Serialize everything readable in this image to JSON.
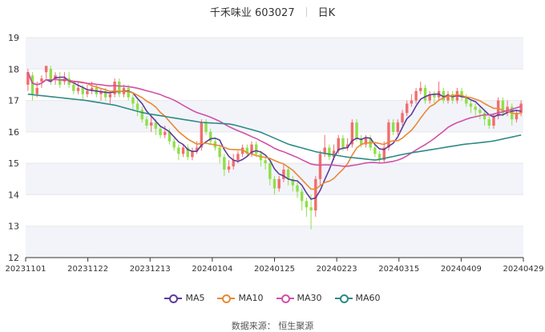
{
  "header": {
    "stock_name": "千禾味业 603027",
    "period": "日K"
  },
  "source": "数据来源： 恒生聚源",
  "colors": {
    "up": "#f26d6d",
    "down": "#8fe04a",
    "ma5": "#5d3b9b",
    "ma10": "#e88a34",
    "ma30": "#d150a8",
    "ma60": "#2d8a86",
    "grid": "#e8e8e8",
    "band": "#f2f4fa"
  },
  "chart_data": {
    "type": "candlestick",
    "x_tick_labels": [
      "20231101",
      "20231122",
      "20231213",
      "20240104",
      "20240125",
      "20240223",
      "20240315",
      "20240409",
      "20240429"
    ],
    "y_tick_labels": [
      "12",
      "13",
      "14",
      "15",
      "16",
      "17",
      "18",
      "19"
    ],
    "ylim": [
      12,
      19
    ],
    "legend": [
      "MA5",
      "MA10",
      "MA30",
      "MA60"
    ],
    "legend_position": "bottom",
    "candles": [
      {
        "o": 17.5,
        "c": 17.9,
        "h": 18.0,
        "l": 17.3
      },
      {
        "o": 17.8,
        "c": 17.2,
        "h": 17.9,
        "l": 17.0
      },
      {
        "o": 17.2,
        "c": 17.4,
        "h": 17.6,
        "l": 17.1
      },
      {
        "o": 17.6,
        "c": 17.7,
        "h": 17.8,
        "l": 17.4
      },
      {
        "o": 17.9,
        "c": 18.1,
        "h": 18.1,
        "l": 17.7
      },
      {
        "o": 18.0,
        "c": 17.6,
        "h": 18.1,
        "l": 17.5
      },
      {
        "o": 17.7,
        "c": 17.8,
        "h": 17.9,
        "l": 17.5
      },
      {
        "o": 17.7,
        "c": 17.5,
        "h": 17.9,
        "l": 17.4
      },
      {
        "o": 17.6,
        "c": 17.7,
        "h": 17.9,
        "l": 17.5
      },
      {
        "o": 17.7,
        "c": 17.5,
        "h": 17.9,
        "l": 17.4
      },
      {
        "o": 17.5,
        "c": 17.3,
        "h": 17.6,
        "l": 17.2
      },
      {
        "o": 17.3,
        "c": 17.4,
        "h": 17.6,
        "l": 17.2
      },
      {
        "o": 17.4,
        "c": 17.2,
        "h": 17.5,
        "l": 17.0
      },
      {
        "o": 17.2,
        "c": 17.3,
        "h": 17.5,
        "l": 17.1
      },
      {
        "o": 17.3,
        "c": 17.4,
        "h": 17.6,
        "l": 17.2
      },
      {
        "o": 17.4,
        "c": 17.2,
        "h": 17.5,
        "l": 17.1
      },
      {
        "o": 17.2,
        "c": 17.3,
        "h": 17.4,
        "l": 17.0
      },
      {
        "o": 17.3,
        "c": 17.1,
        "h": 17.4,
        "l": 17.0
      },
      {
        "o": 17.1,
        "c": 17.2,
        "h": 17.3,
        "l": 16.9
      },
      {
        "o": 17.2,
        "c": 17.6,
        "h": 17.7,
        "l": 17.1
      },
      {
        "o": 17.6,
        "c": 17.2,
        "h": 17.7,
        "l": 17.1
      },
      {
        "o": 17.2,
        "c": 17.4,
        "h": 17.5,
        "l": 17.1
      },
      {
        "o": 17.4,
        "c": 17.1,
        "h": 17.5,
        "l": 17.0
      },
      {
        "o": 17.1,
        "c": 16.9,
        "h": 17.2,
        "l": 16.7
      },
      {
        "o": 16.9,
        "c": 16.7,
        "h": 17.0,
        "l": 16.5
      },
      {
        "o": 16.7,
        "c": 16.4,
        "h": 16.8,
        "l": 16.3
      },
      {
        "o": 16.4,
        "c": 16.2,
        "h": 16.5,
        "l": 16.1
      },
      {
        "o": 16.2,
        "c": 16.3,
        "h": 16.5,
        "l": 16.0
      },
      {
        "o": 16.3,
        "c": 16.1,
        "h": 16.4,
        "l": 15.9
      },
      {
        "o": 16.1,
        "c": 15.9,
        "h": 16.2,
        "l": 15.8
      },
      {
        "o": 15.9,
        "c": 16.0,
        "h": 16.2,
        "l": 15.8
      },
      {
        "o": 16.0,
        "c": 15.7,
        "h": 16.1,
        "l": 15.6
      },
      {
        "o": 15.7,
        "c": 15.5,
        "h": 15.8,
        "l": 15.4
      },
      {
        "o": 15.5,
        "c": 15.3,
        "h": 15.6,
        "l": 15.1
      },
      {
        "o": 15.3,
        "c": 15.5,
        "h": 15.6,
        "l": 15.2
      },
      {
        "o": 15.5,
        "c": 15.2,
        "h": 15.6,
        "l": 15.1
      },
      {
        "o": 15.2,
        "c": 15.4,
        "h": 15.5,
        "l": 15.1
      },
      {
        "o": 15.4,
        "c": 15.5,
        "h": 15.7,
        "l": 15.3
      },
      {
        "o": 15.5,
        "c": 16.3,
        "h": 16.4,
        "l": 15.4
      },
      {
        "o": 16.3,
        "c": 16.0,
        "h": 16.4,
        "l": 15.9
      },
      {
        "o": 16.0,
        "c": 15.7,
        "h": 16.1,
        "l": 15.6
      },
      {
        "o": 15.7,
        "c": 15.5,
        "h": 15.8,
        "l": 15.4
      },
      {
        "o": 15.5,
        "c": 15.2,
        "h": 15.6,
        "l": 15.0
      },
      {
        "o": 15.2,
        "c": 14.8,
        "h": 15.3,
        "l": 14.6
      },
      {
        "o": 14.8,
        "c": 14.9,
        "h": 15.1,
        "l": 14.7
      },
      {
        "o": 14.9,
        "c": 15.1,
        "h": 15.3,
        "l": 14.8
      },
      {
        "o": 15.1,
        "c": 15.3,
        "h": 15.4,
        "l": 15.0
      },
      {
        "o": 15.3,
        "c": 15.5,
        "h": 15.6,
        "l": 15.2
      },
      {
        "o": 15.5,
        "c": 15.3,
        "h": 15.6,
        "l": 15.2
      },
      {
        "o": 15.3,
        "c": 15.6,
        "h": 15.7,
        "l": 15.2
      },
      {
        "o": 15.6,
        "c": 15.3,
        "h": 15.7,
        "l": 15.2
      },
      {
        "o": 15.3,
        "c": 15.1,
        "h": 15.4,
        "l": 14.9
      },
      {
        "o": 15.1,
        "c": 15.0,
        "h": 15.2,
        "l": 14.8
      },
      {
        "o": 15.0,
        "c": 14.5,
        "h": 15.1,
        "l": 14.3
      },
      {
        "o": 14.5,
        "c": 14.2,
        "h": 14.6,
        "l": 14.0
      },
      {
        "o": 14.2,
        "c": 14.5,
        "h": 14.6,
        "l": 14.1
      },
      {
        "o": 14.5,
        "c": 14.8,
        "h": 15.0,
        "l": 14.4
      },
      {
        "o": 14.8,
        "c": 14.5,
        "h": 14.9,
        "l": 14.3
      },
      {
        "o": 14.5,
        "c": 14.3,
        "h": 14.6,
        "l": 14.1
      },
      {
        "o": 14.3,
        "c": 14.1,
        "h": 14.4,
        "l": 13.9
      },
      {
        "o": 14.1,
        "c": 13.8,
        "h": 14.2,
        "l": 13.5
      },
      {
        "o": 13.8,
        "c": 13.6,
        "h": 13.9,
        "l": 13.3
      },
      {
        "o": 13.6,
        "c": 13.5,
        "h": 14.0,
        "l": 12.9
      },
      {
        "o": 13.5,
        "c": 14.5,
        "h": 14.6,
        "l": 13.3
      },
      {
        "o": 14.5,
        "c": 15.3,
        "h": 15.4,
        "l": 14.3
      },
      {
        "o": 15.3,
        "c": 15.5,
        "h": 15.9,
        "l": 15.2
      },
      {
        "o": 15.5,
        "c": 15.2,
        "h": 15.6,
        "l": 15.1
      },
      {
        "o": 15.2,
        "c": 15.4,
        "h": 15.6,
        "l": 15.1
      },
      {
        "o": 15.4,
        "c": 15.8,
        "h": 15.9,
        "l": 15.3
      },
      {
        "o": 15.8,
        "c": 15.5,
        "h": 15.9,
        "l": 15.4
      },
      {
        "o": 15.5,
        "c": 15.6,
        "h": 15.8,
        "l": 15.4
      },
      {
        "o": 15.6,
        "c": 16.3,
        "h": 16.4,
        "l": 15.5
      },
      {
        "o": 16.3,
        "c": 15.8,
        "h": 16.4,
        "l": 15.7
      },
      {
        "o": 15.8,
        "c": 15.6,
        "h": 15.9,
        "l": 15.5
      },
      {
        "o": 15.6,
        "c": 15.8,
        "h": 15.9,
        "l": 15.5
      },
      {
        "o": 15.8,
        "c": 15.5,
        "h": 15.9,
        "l": 15.4
      },
      {
        "o": 15.5,
        "c": 15.3,
        "h": 15.6,
        "l": 15.2
      },
      {
        "o": 15.3,
        "c": 15.1,
        "h": 15.4,
        "l": 15.0
      },
      {
        "o": 15.1,
        "c": 15.5,
        "h": 15.7,
        "l": 15.0
      },
      {
        "o": 15.5,
        "c": 16.3,
        "h": 16.4,
        "l": 15.4
      },
      {
        "o": 16.3,
        "c": 16.0,
        "h": 16.4,
        "l": 15.9
      },
      {
        "o": 16.0,
        "c": 16.3,
        "h": 16.4,
        "l": 15.9
      },
      {
        "o": 16.3,
        "c": 16.6,
        "h": 16.7,
        "l": 16.2
      },
      {
        "o": 16.6,
        "c": 16.9,
        "h": 17.0,
        "l": 16.5
      },
      {
        "o": 16.9,
        "c": 17.0,
        "h": 17.2,
        "l": 16.8
      },
      {
        "o": 17.0,
        "c": 17.3,
        "h": 17.4,
        "l": 16.9
      },
      {
        "o": 17.3,
        "c": 17.4,
        "h": 17.6,
        "l": 17.2
      },
      {
        "o": 17.4,
        "c": 17.0,
        "h": 17.5,
        "l": 16.9
      },
      {
        "o": 17.0,
        "c": 17.2,
        "h": 17.3,
        "l": 16.9
      },
      {
        "o": 17.2,
        "c": 17.1,
        "h": 17.3,
        "l": 16.9
      },
      {
        "o": 17.1,
        "c": 17.3,
        "h": 17.6,
        "l": 17.0
      },
      {
        "o": 17.3,
        "c": 17.0,
        "h": 17.4,
        "l": 16.9
      },
      {
        "o": 17.0,
        "c": 17.2,
        "h": 17.3,
        "l": 16.9
      },
      {
        "o": 17.2,
        "c": 17.0,
        "h": 17.3,
        "l": 16.9
      },
      {
        "o": 17.0,
        "c": 17.3,
        "h": 17.4,
        "l": 16.9
      },
      {
        "o": 17.3,
        "c": 17.1,
        "h": 17.4,
        "l": 17.0
      },
      {
        "o": 17.1,
        "c": 16.9,
        "h": 17.2,
        "l": 16.8
      },
      {
        "o": 16.9,
        "c": 16.8,
        "h": 17.0,
        "l": 16.6
      },
      {
        "o": 16.8,
        "c": 16.7,
        "h": 16.9,
        "l": 16.5
      },
      {
        "o": 16.7,
        "c": 16.6,
        "h": 16.8,
        "l": 16.4
      },
      {
        "o": 16.6,
        "c": 16.4,
        "h": 16.7,
        "l": 16.2
      },
      {
        "o": 16.4,
        "c": 16.2,
        "h": 16.5,
        "l": 16.1
      },
      {
        "o": 16.2,
        "c": 16.5,
        "h": 16.6,
        "l": 16.1
      },
      {
        "o": 16.5,
        "c": 17.0,
        "h": 17.1,
        "l": 16.4
      },
      {
        "o": 17.0,
        "c": 16.6,
        "h": 17.1,
        "l": 16.5
      },
      {
        "o": 16.6,
        "c": 16.8,
        "h": 17.0,
        "l": 16.5
      },
      {
        "o": 16.8,
        "c": 16.4,
        "h": 16.9,
        "l": 16.2
      },
      {
        "o": 16.4,
        "c": 16.6,
        "h": 16.7,
        "l": 16.3
      },
      {
        "o": 16.6,
        "c": 16.9,
        "h": 17.0,
        "l": 16.5
      }
    ],
    "ma60": [
      17.2,
      17.1,
      17.0,
      16.85,
      16.6,
      16.45,
      16.3,
      16.25,
      16.0,
      15.6,
      15.35,
      15.2,
      15.1,
      15.3,
      15.45,
      15.6,
      15.7,
      15.9
    ]
  }
}
